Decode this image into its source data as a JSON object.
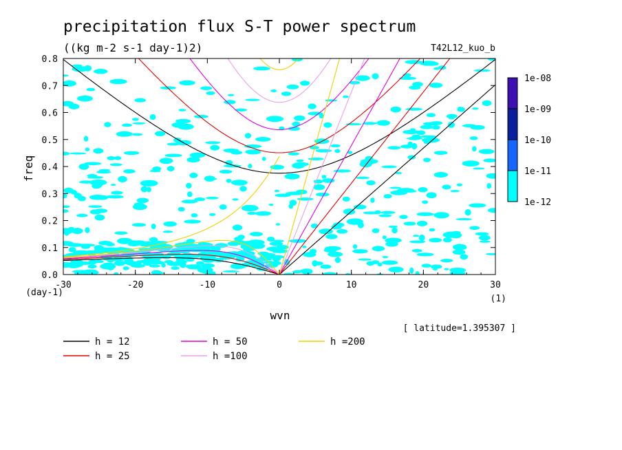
{
  "chart_data": {
    "type": "heatmap",
    "title": "precipitation flux S-T power spectrum",
    "subtitle": "((kg m-2 s-1 day-1)2)",
    "run_label": "T42L12_kuo_b",
    "xlabel": "wvn",
    "ylabel": "freq",
    "x_unit": "(1)",
    "y_unit": "(day-1)",
    "xlim": [
      -30,
      30
    ],
    "ylim": [
      0,
      0.8
    ],
    "x_ticks": [
      "-30",
      "-20",
      "-10",
      "0",
      "10",
      "20",
      "30"
    ],
    "y_ticks": [
      "0.0",
      "0.1",
      "0.2",
      "0.3",
      "0.4",
      "0.5",
      "0.6",
      "0.7",
      "0.8"
    ],
    "latitude_note": "[ latitude=1.395307 ]",
    "colorbar": {
      "labels": [
        "1e-08",
        "1e-09",
        "1e-10",
        "1e-11",
        "1e-12"
      ],
      "colors": [
        "#3c0fb4",
        "#0a1ea0",
        "#1466ff",
        "#00ffff"
      ]
    },
    "fill_color": "#00ffff",
    "dispersion_curves": [
      {
        "name": "h = 12",
        "h": 12,
        "color": "#000000"
      },
      {
        "name": "h = 25",
        "h": 25,
        "color": "#e00000"
      },
      {
        "name": "h = 50",
        "h": 50,
        "color": "#e000e0"
      },
      {
        "name": "h =100",
        "h": 100,
        "color": "#e8a0e8"
      },
      {
        "name": "h =200",
        "h": 200,
        "color": "#f0d000"
      }
    ]
  }
}
